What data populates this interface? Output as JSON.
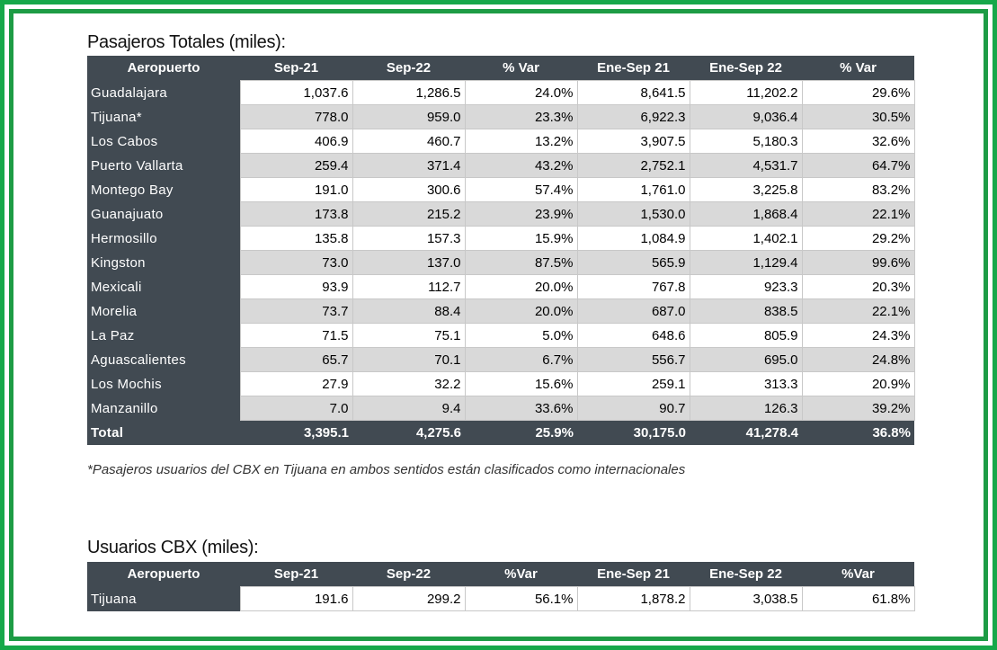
{
  "section1": {
    "title": "Pasajeros Totales (miles):",
    "headers": [
      "Aeropuerto",
      "Sep-21",
      "Sep-22",
      "% Var",
      "Ene-Sep 21",
      "Ene-Sep 22",
      "% Var"
    ],
    "rows": [
      [
        "Guadalajara",
        "1,037.6",
        "1,286.5",
        "24.0%",
        "8,641.5",
        "11,202.2",
        "29.6%"
      ],
      [
        "Tijuana*",
        "778.0",
        "959.0",
        "23.3%",
        "6,922.3",
        "9,036.4",
        "30.5%"
      ],
      [
        "Los Cabos",
        "406.9",
        "460.7",
        "13.2%",
        "3,907.5",
        "5,180.3",
        "32.6%"
      ],
      [
        "Puerto Vallarta",
        "259.4",
        "371.4",
        "43.2%",
        "2,752.1",
        "4,531.7",
        "64.7%"
      ],
      [
        "Montego Bay",
        "191.0",
        "300.6",
        "57.4%",
        "1,761.0",
        "3,225.8",
        "83.2%"
      ],
      [
        "Guanajuato",
        "173.8",
        "215.2",
        "23.9%",
        "1,530.0",
        "1,868.4",
        "22.1%"
      ],
      [
        "Hermosillo",
        "135.8",
        "157.3",
        "15.9%",
        "1,084.9",
        "1,402.1",
        "29.2%"
      ],
      [
        "Kingston",
        "73.0",
        "137.0",
        "87.5%",
        "565.9",
        "1,129.4",
        "99.6%"
      ],
      [
        "Mexicali",
        "93.9",
        "112.7",
        "20.0%",
        "767.8",
        "923.3",
        "20.3%"
      ],
      [
        "Morelia",
        "73.7",
        "88.4",
        "20.0%",
        "687.0",
        "838.5",
        "22.1%"
      ],
      [
        "La Paz",
        "71.5",
        "75.1",
        "5.0%",
        "648.6",
        "805.9",
        "24.3%"
      ],
      [
        "Aguascalientes",
        "65.7",
        "70.1",
        "6.7%",
        "556.7",
        "695.0",
        "24.8%"
      ],
      [
        "Los Mochis",
        "27.9",
        "32.2",
        "15.6%",
        "259.1",
        "313.3",
        "20.9%"
      ],
      [
        "Manzanillo",
        "7.0",
        "9.4",
        "33.6%",
        "90.7",
        "126.3",
        "39.2%"
      ]
    ],
    "total": [
      "Total",
      "3,395.1",
      "4,275.6",
      "25.9%",
      "30,175.0",
      "41,278.4",
      "36.8%"
    ],
    "note": "*Pasajeros usuarios del CBX en Tijuana en ambos sentidos están clasificados como internacionales"
  },
  "section2": {
    "title": "Usuarios CBX (miles):",
    "headers": [
      "Aeropuerto",
      "Sep-21",
      "Sep-22",
      "%Var",
      "Ene-Sep 21",
      "Ene-Sep 22",
      "%Var"
    ],
    "rows": [
      [
        "Tijuana",
        "191.6",
        "299.2",
        "56.1%",
        "1,878.2",
        "3,038.5",
        "61.8%"
      ]
    ]
  },
  "colors": {
    "header_bg": "#414a52",
    "alt_row": "#d9d9d9",
    "frame_green": "#17a84a"
  }
}
